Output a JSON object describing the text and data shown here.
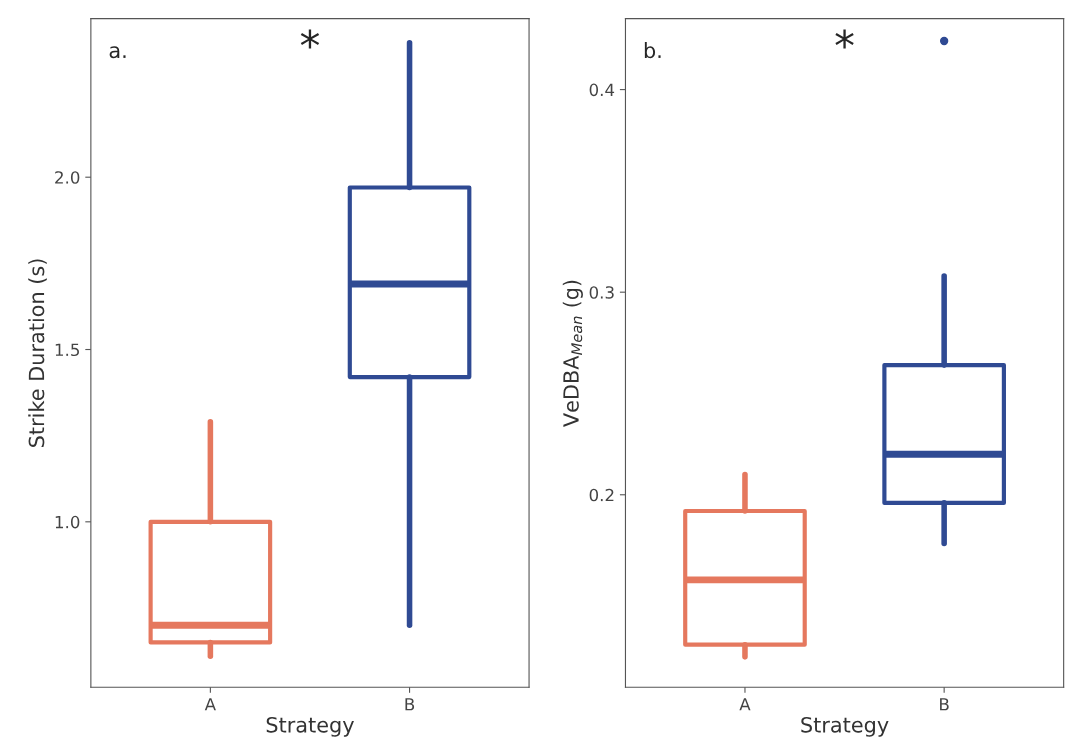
{
  "chart_data": [
    {
      "type": "box",
      "categories": [
        "A",
        "B"
      ],
      "xlabel": "Strategy",
      "ylabel": "Strike Duration (s)",
      "ylim": [
        0.52,
        2.46
      ],
      "yticks": [
        {
          "value": 1,
          "label": "1.0"
        },
        1.5,
        {
          "value": 2,
          "label": "2.0"
        }
      ],
      "colors": [
        "#e5785e",
        "#2f4a93"
      ],
      "annotations": [
        "a.",
        "*"
      ],
      "boxes": [
        {
          "low": 0.61,
          "q1": 0.65,
          "median": 0.7,
          "q3": 1.0,
          "high": 1.29
        },
        {
          "low": 0.7,
          "q1": 1.42,
          "median": 1.69,
          "q3": 1.97,
          "high": 2.39
        }
      ]
    },
    {
      "type": "box",
      "categories": [
        "A",
        "B"
      ],
      "xlabel": "Strategy",
      "ylabel": "VeDBA$_{Mean}$ (g)",
      "ylim": [
        0.105,
        0.435
      ],
      "yticks": [
        0.2,
        0.3,
        0.4
      ],
      "colors": [
        "#e5785e",
        "#2f4a93"
      ],
      "annotations": [
        "b.",
        "*"
      ],
      "boxes": [
        {
          "low": 0.12,
          "q1": 0.126,
          "median": 0.158,
          "q3": 0.192,
          "high": 0.21
        },
        {
          "low": 0.176,
          "q1": 0.196,
          "median": 0.22,
          "q3": 0.264,
          "high": 0.308,
          "outliers": [
            0.424
          ]
        }
      ]
    }
  ]
}
